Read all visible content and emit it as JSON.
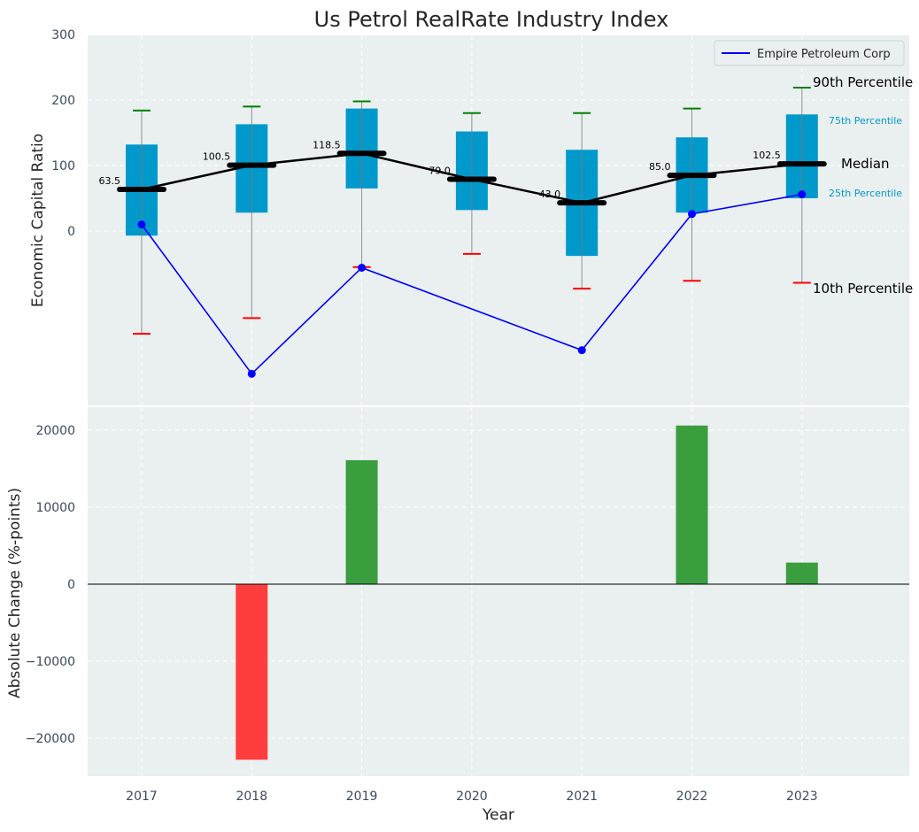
{
  "chart_data": [
    {
      "type": "box",
      "title": "Us Petrol RealRate Industry Index",
      "xlabel": "",
      "ylabel": "Economic Capital Ratio",
      "ylim": [
        -260,
        300
      ],
      "yticks": [
        0,
        100,
        200,
        300
      ],
      "categories": [
        "2017",
        "2018",
        "2019",
        "2020",
        "2021",
        "2022",
        "2023"
      ],
      "p10": [
        -157,
        -133,
        -55,
        -35,
        -88,
        -76,
        -79
      ],
      "p25": [
        -7,
        28,
        65,
        32,
        -38,
        28,
        50
      ],
      "median": [
        63.5,
        100.5,
        118.5,
        79.0,
        43.0,
        85.0,
        102.5
      ],
      "median_labels": [
        "63.5",
        "100.5",
        "118.5",
        "79.0",
        "43.0",
        "85.0",
        "102.5"
      ],
      "p75": [
        132,
        163,
        187,
        152,
        124,
        143,
        178
      ],
      "p90": [
        184,
        190,
        198,
        180,
        180,
        187,
        219
      ],
      "series": [
        {
          "name": "Empire Petroleum Corp",
          "values": [
            10,
            -218,
            -56,
            null,
            -182,
            26,
            56
          ],
          "color": "#0000ff"
        }
      ],
      "legend": {
        "label": "Empire Petroleum Corp",
        "position": "top-right"
      },
      "annotations": {
        "p90": "90th Percentile",
        "p75": "75th Percentile",
        "median": "Median",
        "p25": "25th Percentile",
        "p10": "10th Percentile"
      },
      "colors": {
        "box": "#0099cc",
        "median": "#000000",
        "p90_cap": "#008000",
        "p10_cap": "#ff0000",
        "background": "#eaeff0"
      }
    },
    {
      "type": "bar",
      "xlabel": "Year",
      "ylabel": "Absolute Change (%-points)",
      "ylim": [
        -25000,
        23000
      ],
      "yticks": [
        -20000,
        -10000,
        0,
        10000,
        20000
      ],
      "categories": [
        "2017",
        "2018",
        "2019",
        "2020",
        "2021",
        "2022",
        "2023"
      ],
      "values": [
        0,
        -22800,
        16100,
        0,
        0,
        20600,
        2800
      ],
      "colors": {
        "positive": "#3a9e3e",
        "negative": "#ff3d3d"
      }
    }
  ]
}
